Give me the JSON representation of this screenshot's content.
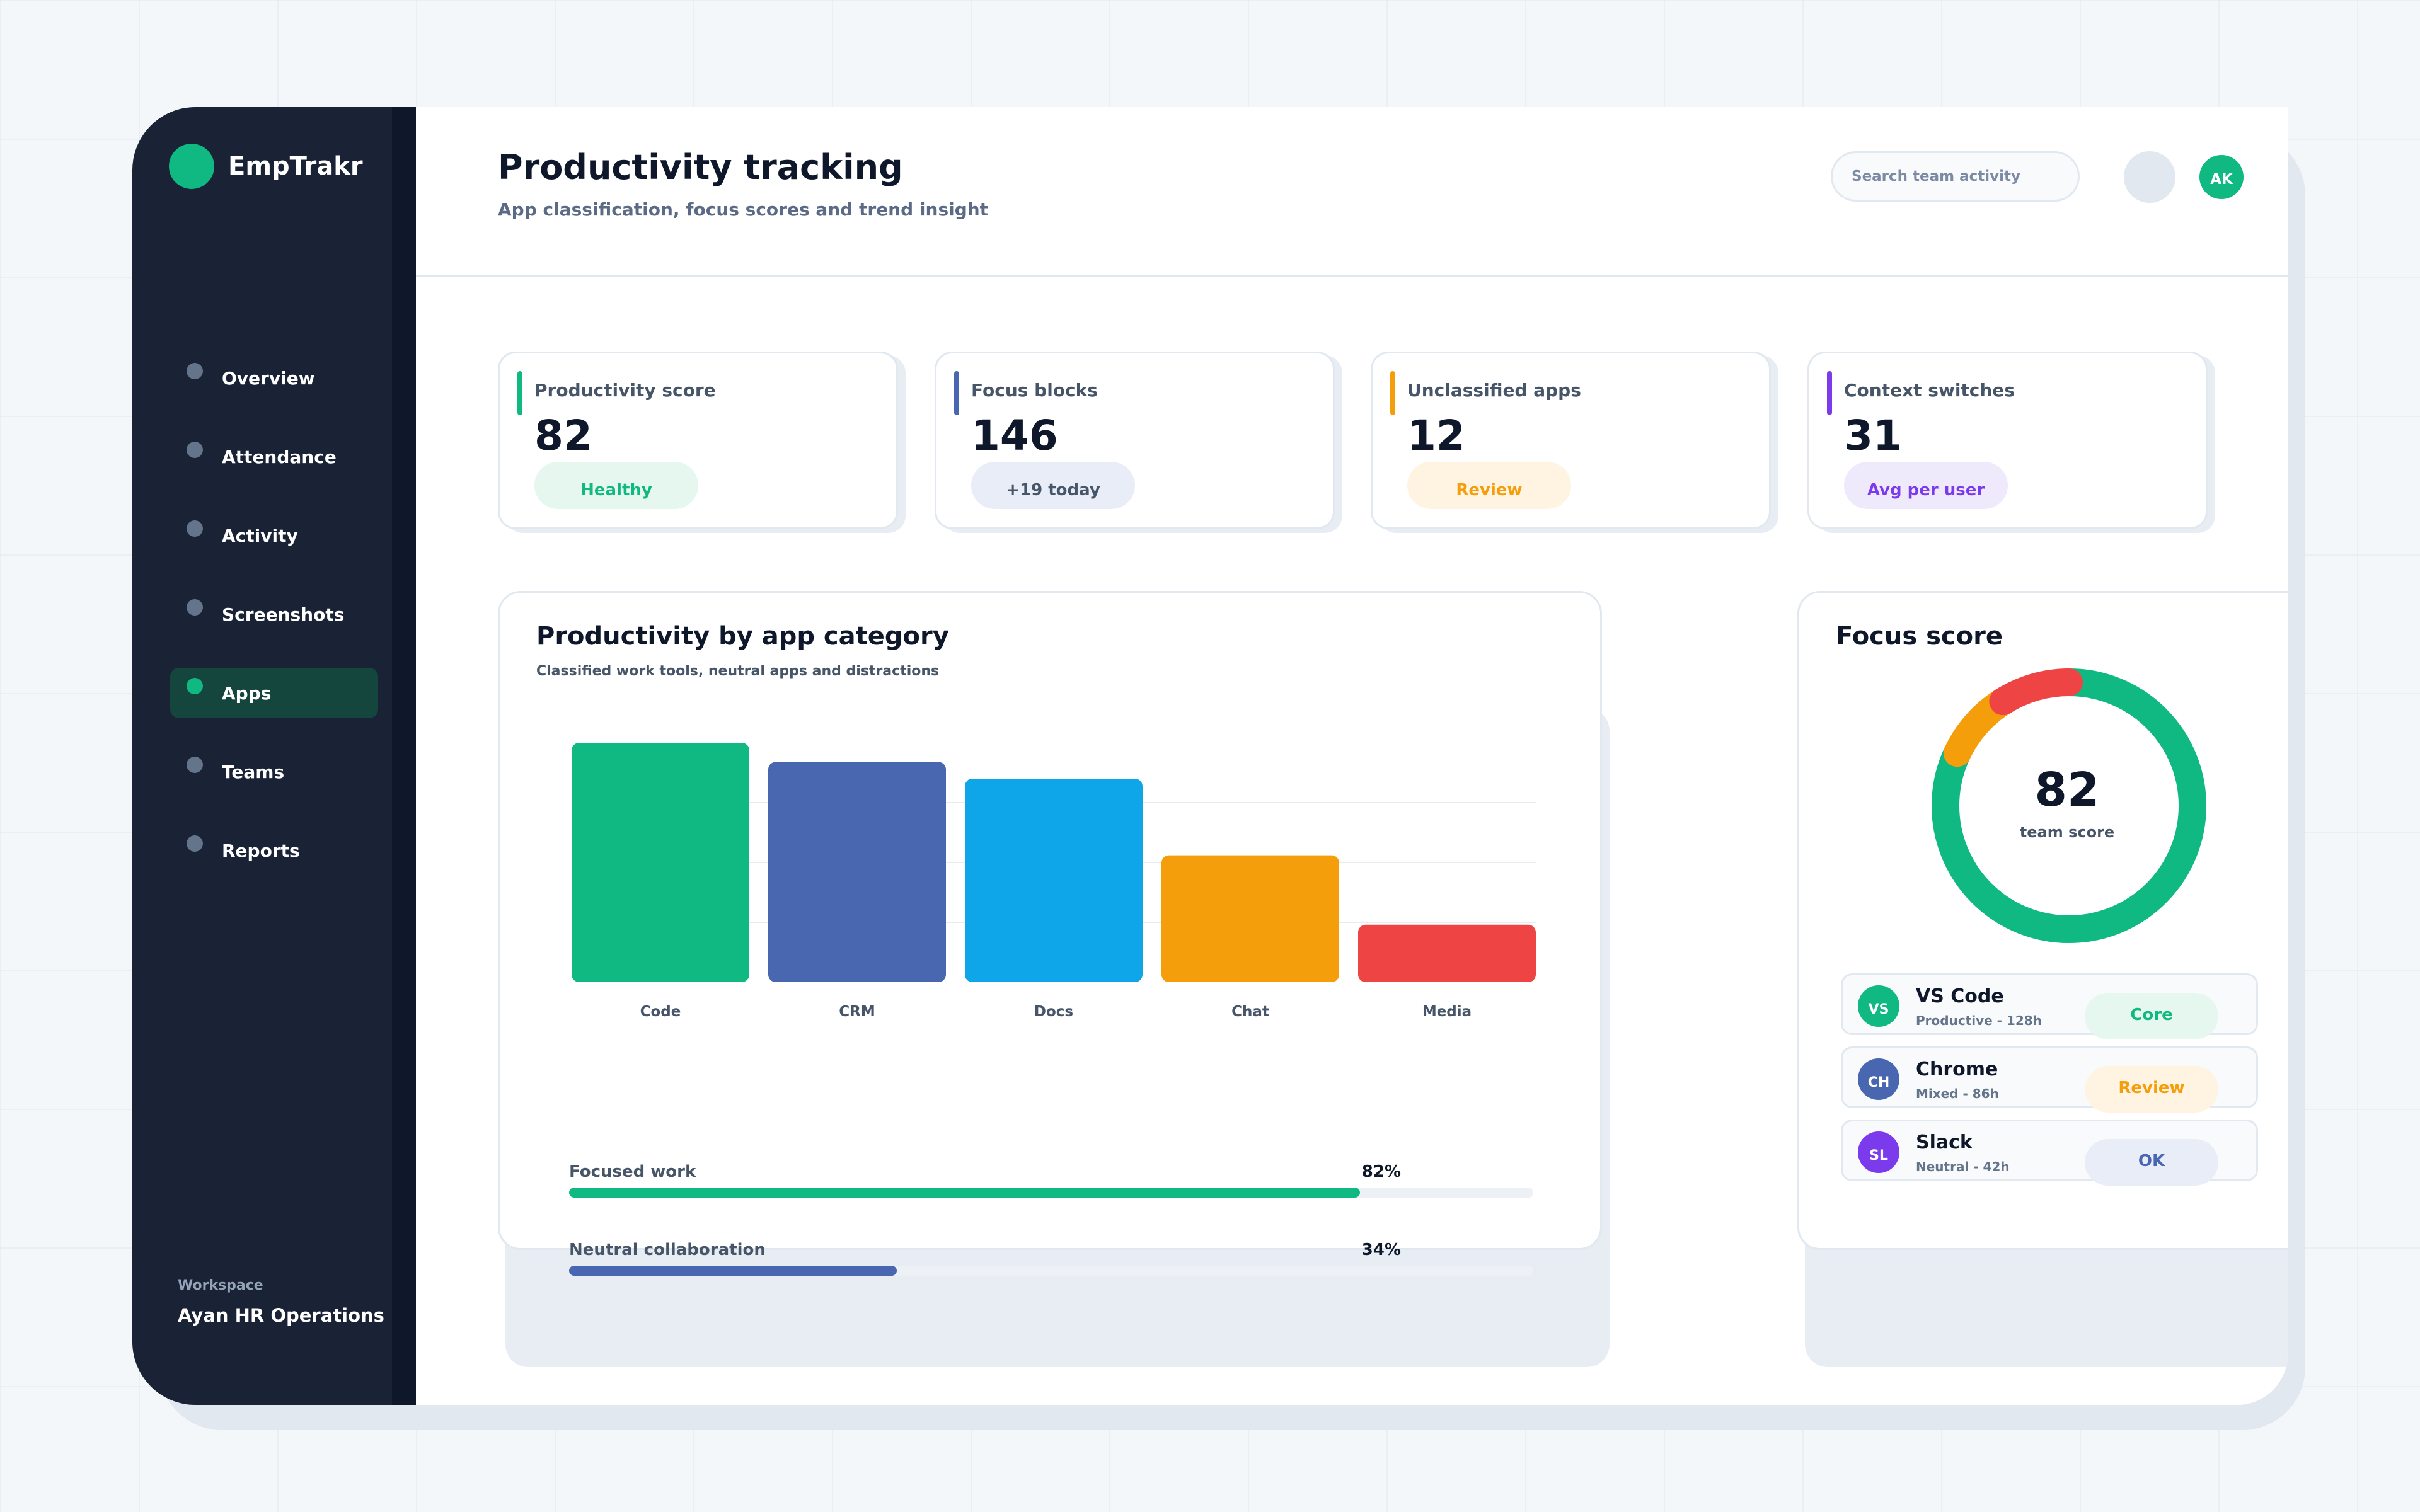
{
  "brand": {
    "name": "EmpTrakr",
    "color": "#10b981"
  },
  "nav": {
    "items": [
      {
        "label": "Overview",
        "active": false
      },
      {
        "label": "Attendance",
        "active": false
      },
      {
        "label": "Activity",
        "active": false
      },
      {
        "label": "Screenshots",
        "active": false
      },
      {
        "label": "Apps",
        "active": true
      },
      {
        "label": "Teams",
        "active": false
      },
      {
        "label": "Reports",
        "active": false
      }
    ]
  },
  "workspace": {
    "label": "Workspace",
    "name": "Ayan HR Operations"
  },
  "header": {
    "title": "Productivity tracking",
    "subtitle": "App classification, focus scores and trend insight",
    "search_placeholder": "Search team activity",
    "avatar_initials": "AK"
  },
  "kpis": [
    {
      "label": "Productivity score",
      "value": "82",
      "badge": "Healthy",
      "accent": "#10b981",
      "badge_bg": "#e6f7f0",
      "badge_color": "#10b981"
    },
    {
      "label": "Focus blocks",
      "value": "146",
      "badge": "+19 today",
      "accent": "#4867b0",
      "badge_bg": "#e9edf7",
      "badge_color": "#475569"
    },
    {
      "label": "Unclassified apps",
      "value": "12",
      "badge": "Review",
      "accent": "#f59e0b",
      "badge_bg": "#fff4e2",
      "badge_color": "#f59e0b"
    },
    {
      "label": "Context switches",
      "value": "31",
      "badge": "Avg per user",
      "accent": "#7c3aed",
      "badge_bg": "#efe9fc",
      "badge_color": "#7c3aed"
    }
  ],
  "category_card": {
    "title": "Productivity by app category",
    "subtitle": "Classified work tools, neutral apps and distractions"
  },
  "chart_data": {
    "type": "bar",
    "title": "Productivity by app category",
    "categories": [
      "Code",
      "CRM",
      "Docs",
      "Chat",
      "Media"
    ],
    "values": [
      100,
      92,
      85,
      53,
      24
    ],
    "colors": [
      "#10b981",
      "#4867b0",
      "#0ea5e9",
      "#f59e0b",
      "#ef4444"
    ],
    "ylim": [
      0,
      100
    ],
    "grid": true,
    "xlabel": "",
    "ylabel": ""
  },
  "progress": [
    {
      "label": "Focused work",
      "value_text": "82%",
      "value": 0.82,
      "color": "#10b981"
    },
    {
      "label": "Neutral collaboration",
      "value_text": "34%",
      "value": 0.34,
      "color": "#4867b0"
    }
  ],
  "focus_card": {
    "title": "Focus score",
    "score": "82",
    "score_label": "team score",
    "segments": [
      {
        "value": 0.82,
        "color": "#10b981"
      },
      {
        "value": 0.09,
        "color": "#f59e0b"
      },
      {
        "value": 0.09,
        "color": "#ef4444"
      }
    ]
  },
  "apps": [
    {
      "initials": "VS",
      "name": "VS Code",
      "meta": "Productive - 128h",
      "badge": "Core",
      "icon_color": "#10b981",
      "badge_bg": "#e6f7f0",
      "badge_color": "#10b981"
    },
    {
      "initials": "CH",
      "name": "Chrome",
      "meta": "Mixed - 86h",
      "badge": "Review",
      "icon_color": "#4867b0",
      "badge_bg": "#fff4e2",
      "badge_color": "#f59e0b"
    },
    {
      "initials": "SL",
      "name": "Slack",
      "meta": "Neutral - 42h",
      "badge": "OK",
      "icon_color": "#7c3aed",
      "badge_bg": "#e9edf7",
      "badge_color": "#4867b0"
    }
  ]
}
